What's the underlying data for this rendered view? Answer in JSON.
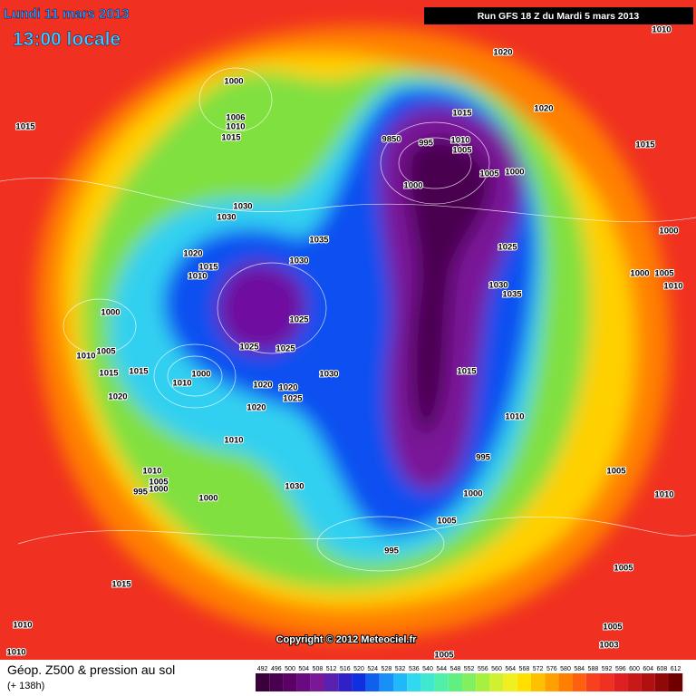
{
  "header": {
    "date": "Lundi 11 mars 2013",
    "time": "13:00 locale",
    "run": "Run GFS 18 Z du Mardi 5 mars 2013"
  },
  "copyright": "Copyright © 2012 Meteociel.fr",
  "footer": {
    "title": "Géop. Z500 & pression au sol",
    "lead": "(+ 138h)"
  },
  "scale": [
    {
      "label": "492",
      "color": "#3a003a"
    },
    {
      "label": "496",
      "color": "#4a0050"
    },
    {
      "label": "500",
      "color": "#5a0066"
    },
    {
      "label": "504",
      "color": "#6a0a80"
    },
    {
      "label": "508",
      "color": "#7a1898"
    },
    {
      "label": "512",
      "color": "#5a20b0"
    },
    {
      "label": "516",
      "color": "#3020c8"
    },
    {
      "label": "520",
      "color": "#1030e0"
    },
    {
      "label": "524",
      "color": "#1060f0"
    },
    {
      "label": "528",
      "color": "#1890f8"
    },
    {
      "label": "532",
      "color": "#20b8f8"
    },
    {
      "label": "536",
      "color": "#30d8f0"
    },
    {
      "label": "540",
      "color": "#40e8d0"
    },
    {
      "label": "544",
      "color": "#50f0a8"
    },
    {
      "label": "548",
      "color": "#60f080"
    },
    {
      "label": "552",
      "color": "#80f060"
    },
    {
      "label": "556",
      "color": "#a8f040"
    },
    {
      "label": "560",
      "color": "#d0f030"
    },
    {
      "label": "564",
      "color": "#f0f020"
    },
    {
      "label": "568",
      "color": "#ffe000"
    },
    {
      "label": "572",
      "color": "#ffc000"
    },
    {
      "label": "576",
      "color": "#ffa000"
    },
    {
      "label": "580",
      "color": "#ff8000"
    },
    {
      "label": "584",
      "color": "#ff6010"
    },
    {
      "label": "588",
      "color": "#f84020"
    },
    {
      "label": "592",
      "color": "#f03020"
    },
    {
      "label": "596",
      "color": "#e02020"
    },
    {
      "label": "600",
      "color": "#c81818"
    },
    {
      "label": "604",
      "color": "#b01010"
    },
    {
      "label": "608",
      "color": "#900808"
    },
    {
      "label": "612",
      "color": "#700000"
    }
  ],
  "isobars": [
    "1010",
    "1020",
    "1000",
    "1006",
    "1010",
    "1015",
    "1015",
    "1015",
    "1020",
    "9850",
    "995",
    "1010",
    "1005",
    "1005",
    "1000",
    "1015",
    "1000",
    "1030",
    "1030",
    "1035",
    "1025",
    "1000",
    "1000",
    "1005",
    "1010",
    "1030",
    "1020",
    "1015",
    "1010",
    "1030",
    "1035",
    "1025",
    "1000",
    "1005",
    "1010",
    "1025",
    "1025",
    "1015",
    "1015",
    "1000",
    "1010",
    "1015",
    "1030",
    "1020",
    "1020",
    "1020",
    "1025",
    "1020",
    "1010",
    "1010",
    "995",
    "1005",
    "1010",
    "1005",
    "1000",
    "995",
    "1030",
    "1000",
    "1000",
    "1010",
    "1005",
    "995",
    "1015",
    "1005",
    "1010",
    "1005",
    "1010",
    "1003",
    "1005"
  ]
}
